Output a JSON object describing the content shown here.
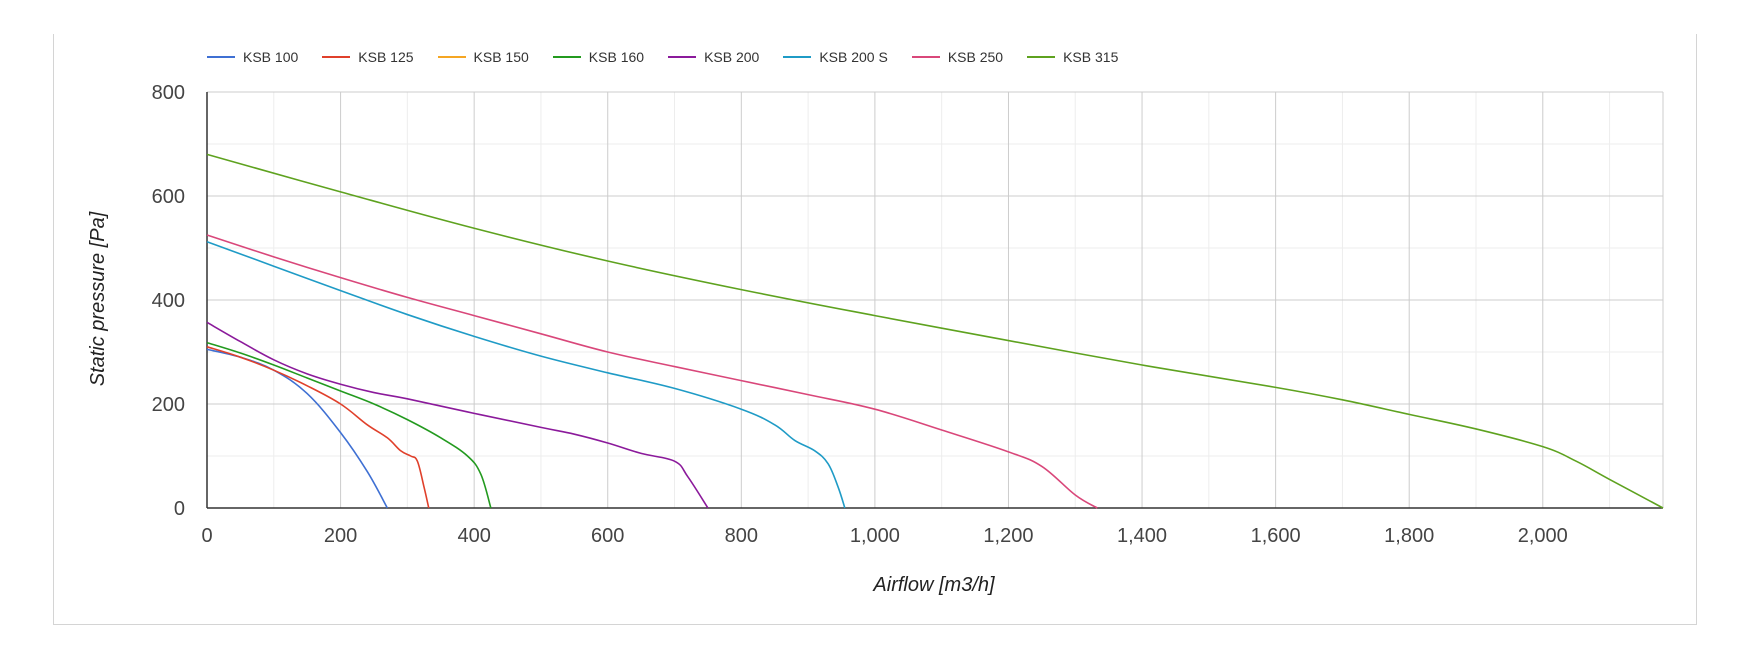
{
  "chart_data": {
    "type": "line",
    "title": "",
    "xlabel": "Airflow [m3/h]",
    "ylabel": "Static pressure [Pa]",
    "xlim": [
      0,
      2180
    ],
    "ylim": [
      0,
      800
    ],
    "x_ticks": [
      0,
      200,
      400,
      600,
      800,
      1000,
      1200,
      1400,
      1600,
      1800,
      2000
    ],
    "x_tick_labels": [
      "0",
      "200",
      "400",
      "600",
      "800",
      "1,000",
      "1,200",
      "1,400",
      "1,600",
      "1,800",
      "2,000"
    ],
    "y_ticks": [
      0,
      200,
      400,
      600,
      800
    ],
    "y_tick_labels": [
      "0",
      "200",
      "400",
      "600",
      "800"
    ],
    "grid": true,
    "legend_position": "top-left",
    "series": [
      {
        "name": "KSB 100",
        "color": "#3f70d3",
        "points": [
          [
            0,
            305
          ],
          [
            50,
            290
          ],
          [
            100,
            265
          ],
          [
            150,
            220
          ],
          [
            200,
            145
          ],
          [
            240,
            70
          ],
          [
            270,
            0
          ]
        ]
      },
      {
        "name": "KSB 125",
        "color": "#e0402b",
        "points": [
          [
            0,
            310
          ],
          [
            50,
            290
          ],
          [
            100,
            265
          ],
          [
            150,
            235
          ],
          [
            200,
            200
          ],
          [
            240,
            160
          ],
          [
            270,
            135
          ],
          [
            290,
            110
          ],
          [
            305,
            100
          ],
          [
            315,
            90
          ],
          [
            325,
            40
          ],
          [
            332,
            0
          ]
        ]
      },
      {
        "name": "KSB 150",
        "color": "#f5a623",
        "points": []
      },
      {
        "name": "KSB 160",
        "color": "#239a1f",
        "points": [
          [
            0,
            318
          ],
          [
            50,
            298
          ],
          [
            100,
            275
          ],
          [
            150,
            250
          ],
          [
            200,
            225
          ],
          [
            250,
            200
          ],
          [
            300,
            170
          ],
          [
            350,
            135
          ],
          [
            390,
            100
          ],
          [
            410,
            65
          ],
          [
            425,
            0
          ]
        ]
      },
      {
        "name": "KSB 200",
        "color": "#8b1a9b",
        "points": [
          [
            0,
            357
          ],
          [
            50,
            320
          ],
          [
            100,
            285
          ],
          [
            150,
            258
          ],
          [
            200,
            238
          ],
          [
            250,
            222
          ],
          [
            300,
            210
          ],
          [
            400,
            182
          ],
          [
            500,
            155
          ],
          [
            550,
            142
          ],
          [
            600,
            125
          ],
          [
            650,
            105
          ],
          [
            700,
            90
          ],
          [
            720,
            60
          ],
          [
            750,
            0
          ]
        ]
      },
      {
        "name": "KSB 200 S",
        "color": "#1f9bc6",
        "points": [
          [
            0,
            512
          ],
          [
            100,
            465
          ],
          [
            200,
            418
          ],
          [
            300,
            372
          ],
          [
            400,
            330
          ],
          [
            500,
            292
          ],
          [
            600,
            260
          ],
          [
            700,
            230
          ],
          [
            800,
            190
          ],
          [
            850,
            160
          ],
          [
            880,
            130
          ],
          [
            910,
            110
          ],
          [
            930,
            85
          ],
          [
            945,
            40
          ],
          [
            955,
            0
          ]
        ]
      },
      {
        "name": "KSB 250",
        "color": "#d9477a",
        "points": [
          [
            0,
            525
          ],
          [
            100,
            483
          ],
          [
            200,
            443
          ],
          [
            300,
            405
          ],
          [
            400,
            370
          ],
          [
            500,
            335
          ],
          [
            600,
            300
          ],
          [
            700,
            272
          ],
          [
            800,
            245
          ],
          [
            900,
            218
          ],
          [
            1000,
            190
          ],
          [
            1100,
            150
          ],
          [
            1200,
            108
          ],
          [
            1250,
            80
          ],
          [
            1300,
            25
          ],
          [
            1333,
            0
          ]
        ]
      },
      {
        "name": "KSB 315",
        "color": "#5ea21f",
        "points": [
          [
            0,
            680
          ],
          [
            200,
            608
          ],
          [
            400,
            538
          ],
          [
            600,
            475
          ],
          [
            800,
            420
          ],
          [
            1000,
            370
          ],
          [
            1200,
            322
          ],
          [
            1400,
            275
          ],
          [
            1600,
            232
          ],
          [
            1700,
            208
          ],
          [
            1800,
            180
          ],
          [
            1900,
            152
          ],
          [
            2000,
            118
          ],
          [
            2050,
            90
          ],
          [
            2100,
            55
          ],
          [
            2180,
            0
          ]
        ]
      }
    ]
  }
}
